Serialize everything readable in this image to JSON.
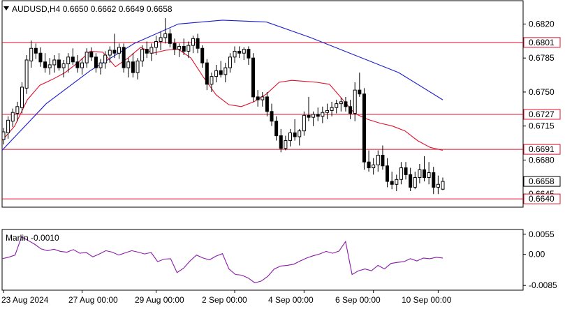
{
  "chart_data": {
    "type": "candlestick",
    "symbol": "AUDUSD,H4",
    "ohlc_header": {
      "open": "0.6650",
      "high": "0.6662",
      "low": "0.6649",
      "close": "0.6658"
    },
    "price_axis": {
      "ticks": [
        "0.6820",
        "0.6785",
        "0.6750",
        "0.6715",
        "0.6680",
        "0.6645"
      ],
      "ylim": [
        0.66315,
        0.6844
      ]
    },
    "time_axis": {
      "ticks": [
        "23 Aug 2024",
        "27 Aug 00:00",
        "29 Aug 00:00",
        "2 Sep 00:00",
        "4 Sep 00:00",
        "6 Sep 00:00",
        "10 Sep 00:00"
      ]
    },
    "levels": [
      {
        "value": 0.6801,
        "label": "0.6801"
      },
      {
        "value": 0.6727,
        "label": "0.6727"
      },
      {
        "value": 0.6691,
        "label": "0.6691"
      },
      {
        "value": 0.664,
        "label": "0.6640"
      }
    ],
    "current_price": {
      "value": 0.6658,
      "label": "0.6658"
    },
    "candles": [
      [
        0.6701,
        0.6713,
        0.6696,
        0.6709
      ],
      [
        0.6708,
        0.6725,
        0.6702,
        0.6721
      ],
      [
        0.672,
        0.6733,
        0.6714,
        0.6729
      ],
      [
        0.6728,
        0.674,
        0.672,
        0.6735
      ],
      [
        0.6734,
        0.676,
        0.6728,
        0.6755
      ],
      [
        0.6754,
        0.6788,
        0.6748,
        0.6783
      ],
      [
        0.6782,
        0.6803,
        0.6775,
        0.6795
      ],
      [
        0.6795,
        0.68,
        0.6784,
        0.679
      ],
      [
        0.679,
        0.6796,
        0.6776,
        0.6781
      ],
      [
        0.6781,
        0.679,
        0.677,
        0.6775
      ],
      [
        0.6775,
        0.6785,
        0.6768,
        0.6778
      ],
      [
        0.6778,
        0.6788,
        0.677,
        0.6783
      ],
      [
        0.6783,
        0.679,
        0.6772,
        0.6775
      ],
      [
        0.6775,
        0.6783,
        0.6765,
        0.6779
      ],
      [
        0.6779,
        0.679,
        0.677,
        0.6786
      ],
      [
        0.6786,
        0.6795,
        0.6778,
        0.6781
      ],
      [
        0.6781,
        0.6788,
        0.677,
        0.6775
      ],
      [
        0.6775,
        0.6785,
        0.6768,
        0.678
      ],
      [
        0.678,
        0.6795,
        0.6775,
        0.6791
      ],
      [
        0.6791,
        0.6796,
        0.6782,
        0.6786
      ],
      [
        0.6786,
        0.679,
        0.677,
        0.6775
      ],
      [
        0.6775,
        0.6784,
        0.6768,
        0.678
      ],
      [
        0.678,
        0.6792,
        0.6774,
        0.6788
      ],
      [
        0.6788,
        0.6797,
        0.678,
        0.6793
      ],
      [
        0.6793,
        0.681,
        0.6785,
        0.679
      ],
      [
        0.679,
        0.68,
        0.6784,
        0.6796
      ],
      [
        0.6796,
        0.68,
        0.677,
        0.6775
      ],
      [
        0.6775,
        0.6785,
        0.6765,
        0.6781
      ],
      [
        0.6781,
        0.679,
        0.6765,
        0.677
      ],
      [
        0.677,
        0.6785,
        0.6763,
        0.6782
      ],
      [
        0.6782,
        0.6798,
        0.6776,
        0.6794
      ],
      [
        0.6794,
        0.6802,
        0.6785,
        0.679
      ],
      [
        0.679,
        0.68,
        0.6782,
        0.6796
      ],
      [
        0.6796,
        0.6808,
        0.6788,
        0.6802
      ],
      [
        0.6802,
        0.6812,
        0.6793,
        0.6806
      ],
      [
        0.6806,
        0.6826,
        0.68,
        0.681
      ],
      [
        0.681,
        0.6815,
        0.6796,
        0.68
      ],
      [
        0.68,
        0.6805,
        0.6788,
        0.6794
      ],
      [
        0.6794,
        0.68,
        0.6786,
        0.6797
      ],
      [
        0.6797,
        0.6805,
        0.6788,
        0.6792
      ],
      [
        0.6792,
        0.6802,
        0.6785,
        0.6798
      ],
      [
        0.6798,
        0.6808,
        0.679,
        0.6805
      ],
      [
        0.6805,
        0.681,
        0.679,
        0.6795
      ],
      [
        0.6795,
        0.6798,
        0.6775,
        0.678
      ],
      [
        0.678,
        0.6784,
        0.6752,
        0.6758
      ],
      [
        0.6758,
        0.677,
        0.675,
        0.6766
      ],
      [
        0.6766,
        0.6778,
        0.676,
        0.6772
      ],
      [
        0.6772,
        0.6782,
        0.6765,
        0.6768
      ],
      [
        0.6768,
        0.678,
        0.676,
        0.6775
      ],
      [
        0.6775,
        0.679,
        0.677,
        0.6786
      ],
      [
        0.6786,
        0.6797,
        0.678,
        0.6792
      ],
      [
        0.6792,
        0.6797,
        0.6785,
        0.679
      ],
      [
        0.679,
        0.6796,
        0.6783,
        0.6794
      ],
      [
        0.6794,
        0.6797,
        0.6778,
        0.6785
      ],
      [
        0.6785,
        0.679,
        0.674,
        0.6745
      ],
      [
        0.6745,
        0.6752,
        0.6735,
        0.6742
      ],
      [
        0.6742,
        0.675,
        0.6735,
        0.6745
      ],
      [
        0.6745,
        0.675,
        0.6725,
        0.673
      ],
      [
        0.673,
        0.6738,
        0.6715,
        0.672
      ],
      [
        0.672,
        0.6725,
        0.67,
        0.6705
      ],
      [
        0.6705,
        0.6712,
        0.6688,
        0.6692
      ],
      [
        0.6692,
        0.6705,
        0.669,
        0.67
      ],
      [
        0.67,
        0.6712,
        0.6694,
        0.6708
      ],
      [
        0.6708,
        0.6722,
        0.67,
        0.6704
      ],
      [
        0.6704,
        0.6712,
        0.6695,
        0.671
      ],
      [
        0.671,
        0.673,
        0.6705,
        0.6726
      ],
      [
        0.6726,
        0.6745,
        0.672,
        0.6724
      ],
      [
        0.6724,
        0.673,
        0.6715,
        0.6727
      ],
      [
        0.6727,
        0.6734,
        0.672,
        0.6725
      ],
      [
        0.6725,
        0.6735,
        0.6718,
        0.6729
      ],
      [
        0.6729,
        0.6738,
        0.6722,
        0.6731
      ],
      [
        0.6731,
        0.674,
        0.6725,
        0.6734
      ],
      [
        0.6734,
        0.6742,
        0.6728,
        0.6738
      ],
      [
        0.6738,
        0.6744,
        0.673,
        0.674
      ],
      [
        0.674,
        0.6745,
        0.673,
        0.6735
      ],
      [
        0.6735,
        0.6742,
        0.6722,
        0.6728
      ],
      [
        0.6728,
        0.676,
        0.672,
        0.6752
      ],
      [
        0.6752,
        0.677,
        0.6745,
        0.6748
      ],
      [
        0.6748,
        0.6754,
        0.667,
        0.6678
      ],
      [
        0.6678,
        0.669,
        0.6668,
        0.6672
      ],
      [
        0.6672,
        0.6682,
        0.6665,
        0.6675
      ],
      [
        0.6675,
        0.669,
        0.6668,
        0.6685
      ],
      [
        0.6685,
        0.6695,
        0.667,
        0.6674
      ],
      [
        0.6674,
        0.6682,
        0.6652,
        0.6658
      ],
      [
        0.6658,
        0.6668,
        0.665,
        0.6655
      ],
      [
        0.6655,
        0.6665,
        0.6648,
        0.666
      ],
      [
        0.666,
        0.6678,
        0.6655,
        0.6672
      ],
      [
        0.6672,
        0.6678,
        0.666,
        0.6665
      ],
      [
        0.6665,
        0.6672,
        0.6648,
        0.6652
      ],
      [
        0.6652,
        0.6668,
        0.665,
        0.6662
      ],
      [
        0.6662,
        0.6676,
        0.6656,
        0.667
      ],
      [
        0.667,
        0.6684,
        0.6658,
        0.6662
      ],
      [
        0.6662,
        0.6678,
        0.6655,
        0.6667
      ],
      [
        0.6667,
        0.6673,
        0.6645,
        0.6652
      ],
      [
        0.6652,
        0.6664,
        0.6645,
        0.6655
      ],
      [
        0.665,
        0.6662,
        0.6649,
        0.6658
      ]
    ],
    "ma_blue": [
      0.669,
      0.6738,
      0.6772,
      0.68,
      0.682,
      0.6824,
      0.6822,
      0.6806,
      0.6788,
      0.677,
      0.6742
    ],
    "ma_red": [
      0.67,
      0.6715,
      0.6742,
      0.6757,
      0.6763,
      0.677,
      0.678,
      0.6792,
      0.6791,
      0.6776,
      0.6785,
      0.6796,
      0.679,
      0.6793,
      0.6794,
      0.6785,
      0.6765,
      0.6747,
      0.6737,
      0.6735,
      0.674,
      0.6748,
      0.676,
      0.6762,
      0.6761,
      0.676,
      0.6758,
      0.6743,
      0.6728,
      0.6722,
      0.6718,
      0.6715,
      0.671,
      0.67,
      0.6693,
      0.669
    ],
    "indicator": {
      "name": "Marlin",
      "current": "-0.0010",
      "ticks": [
        "0.0055",
        "0.00",
        "-0.0085"
      ],
      "ylim": [
        -0.0098,
        0.0068
      ],
      "values": [
        -0.0012,
        -0.0008,
        -0.0002,
        0.0048,
        0.0038,
        0.0028,
        0.0015,
        0.001,
        0.0014,
        0.0008,
        0.0006,
        0.0013,
        0.0003,
        0.0005,
        -0.0007,
        0.0001,
        0.001,
        0.0006,
        -0.0002,
        0.0004,
        0.001,
        0.0006,
        0.0001,
        0.0005,
        -0.002,
        -0.0013,
        -0.0012,
        -0.005,
        -0.0038,
        -0.0018,
        -0.0002,
        -0.001,
        -0.0015,
        -0.0005,
        0.0002,
        -0.004,
        -0.0055,
        -0.0057,
        -0.0065,
        -0.0078,
        -0.0073,
        -0.006,
        -0.004,
        -0.0032,
        -0.003,
        -0.0027,
        -0.0018,
        -0.001,
        -0.0004,
        0.0001,
        0.0008,
        0.0003,
        0.0009,
        0.0035,
        -0.0055,
        -0.0045,
        -0.004,
        -0.0045,
        -0.003,
        -0.004,
        -0.0025,
        -0.0022,
        -0.002,
        -0.0012,
        -0.0018,
        -0.001,
        -0.0012,
        -0.0008,
        -0.001
      ]
    },
    "colors": {
      "ma_blue": "#1c1ccf",
      "ma_red": "#e0112b",
      "level": "#e0112b",
      "indicator": "#8b1aa8"
    }
  }
}
